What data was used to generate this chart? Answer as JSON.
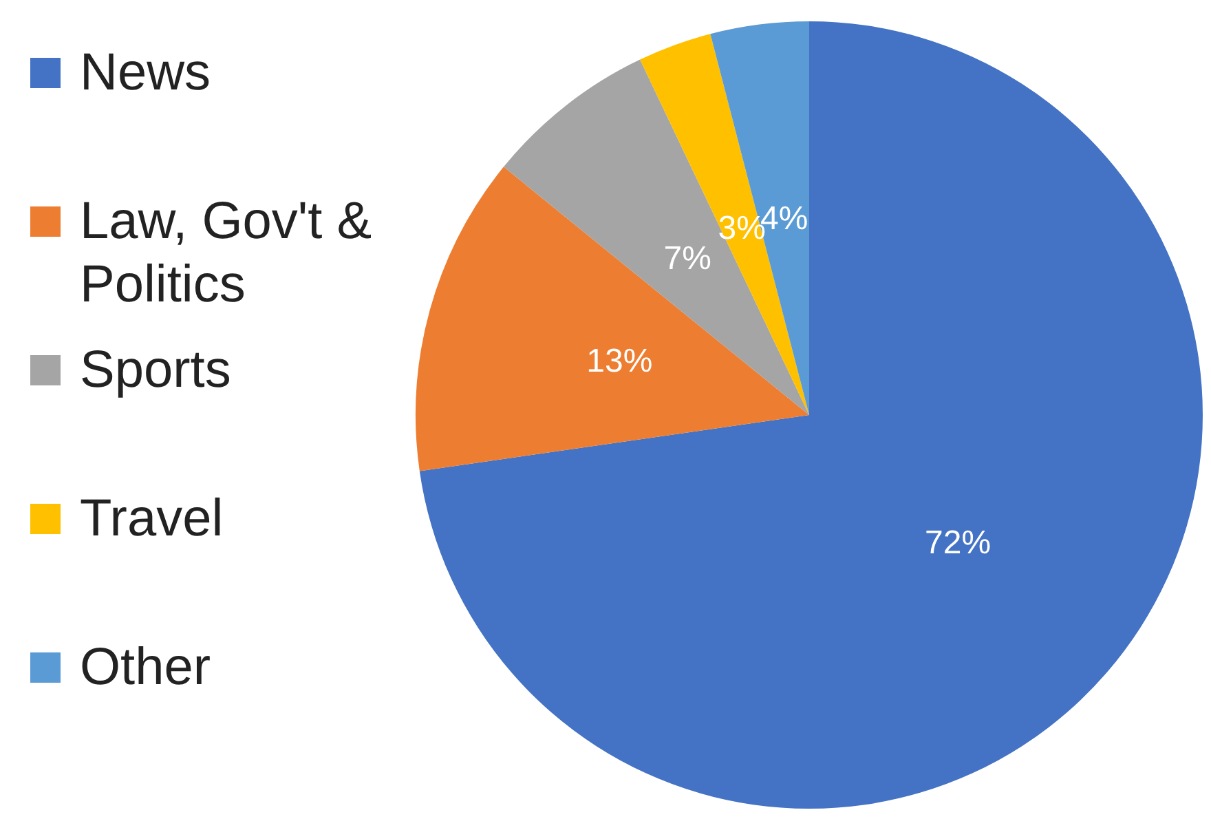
{
  "chart_data": {
    "type": "pie",
    "categories": [
      "News",
      "Law, Gov't & Politics",
      "Sports",
      "Travel",
      "Other"
    ],
    "values": [
      72,
      13,
      7,
      3,
      4
    ],
    "colors": [
      "#4472c4",
      "#ed7d31",
      "#a5a5a5",
      "#ffc000",
      "#5b9bd5"
    ],
    "value_labels": [
      "72%",
      "13%",
      "7%",
      "3%",
      "4%"
    ],
    "legend": "left"
  }
}
